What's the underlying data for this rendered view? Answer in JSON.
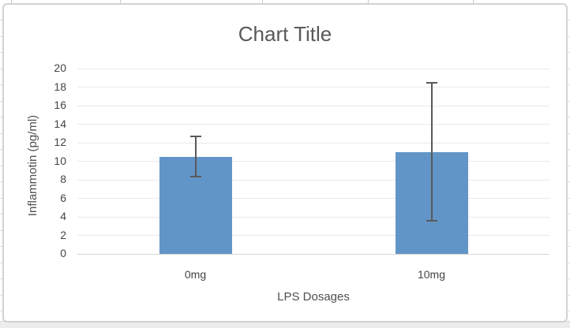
{
  "chart_data": {
    "type": "bar",
    "title": "Chart Title",
    "categories": [
      "0mg",
      "10mg"
    ],
    "values": [
      10.5,
      11.0
    ],
    "error_bars": {
      "upper": [
        12.7,
        18.5
      ],
      "lower": [
        8.3,
        3.6
      ]
    },
    "xlabel": "LPS Dosages",
    "ylabel": "Inflammotin (pg/ml)",
    "ylim": [
      0,
      20
    ],
    "yticks": [
      0,
      2,
      4,
      6,
      8,
      10,
      12,
      14,
      16,
      18,
      20
    ],
    "grid": true,
    "legend": false,
    "colors": {
      "bar": "#6295c7",
      "error_bar": "#595959",
      "gridline": "#e9e9e9",
      "axis_line": "#d6d6d6",
      "title_text": "#595959",
      "tick_text": "#444444"
    }
  }
}
